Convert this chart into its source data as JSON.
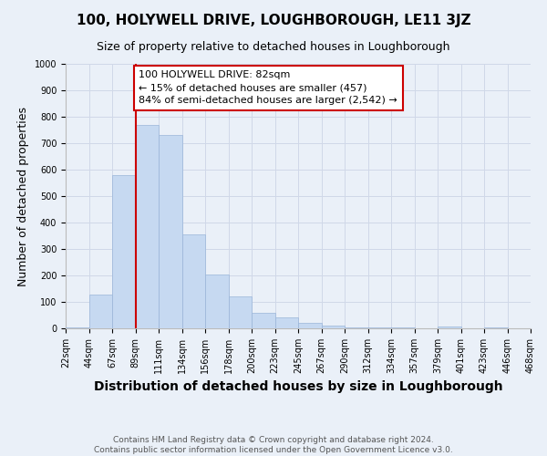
{
  "title": "100, HOLYWELL DRIVE, LOUGHBOROUGH, LE11 3JZ",
  "subtitle": "Size of property relative to detached houses in Loughborough",
  "xlabel": "Distribution of detached houses by size in Loughborough",
  "ylabel": "Number of detached properties",
  "footnote1": "Contains HM Land Registry data © Crown copyright and database right 2024.",
  "footnote2": "Contains public sector information licensed under the Open Government Licence v3.0.",
  "annotation_line1": "100 HOLYWELL DRIVE: 82sqm",
  "annotation_line2": "← 15% of detached houses are smaller (457)",
  "annotation_line3": "84% of semi-detached houses are larger (2,542) →",
  "bar_heights": [
    3,
    128,
    580,
    770,
    730,
    355,
    205,
    120,
    60,
    40,
    20,
    10,
    5,
    3,
    2,
    1,
    8,
    1,
    2,
    0
  ],
  "bar_labels": [
    "22sqm",
    "44sqm",
    "67sqm",
    "89sqm",
    "111sqm",
    "134sqm",
    "156sqm",
    "178sqm",
    "200sqm",
    "223sqm",
    "245sqm",
    "267sqm",
    "290sqm",
    "312sqm",
    "334sqm",
    "357sqm",
    "379sqm",
    "401sqm",
    "423sqm",
    "446sqm",
    "468sqm"
  ],
  "bar_color": "#c6d9f1",
  "bar_edge_color": "#9ab5d8",
  "redline_x": 3,
  "annotation_box_facecolor": "#ffffff",
  "annotation_box_edgecolor": "#cc0000",
  "grid_color": "#d0d8e8",
  "background_color": "#eaf0f8",
  "ylim": [
    0,
    1000
  ],
  "yticks": [
    0,
    100,
    200,
    300,
    400,
    500,
    600,
    700,
    800,
    900,
    1000
  ],
  "title_fontsize": 11,
  "subtitle_fontsize": 9,
  "ylabel_fontsize": 9,
  "xlabel_fontsize": 10,
  "tick_fontsize": 7,
  "footnote_fontsize": 6.5,
  "annotation_fontsize": 8
}
